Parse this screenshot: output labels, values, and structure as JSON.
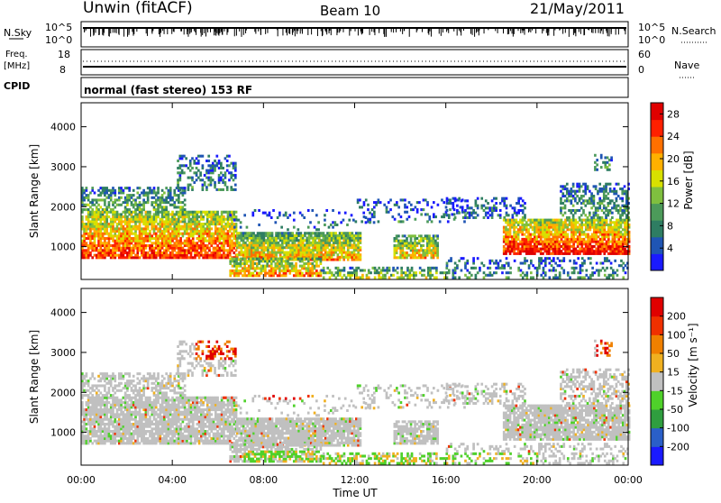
{
  "header": {
    "station": "Unwin (fitACF)",
    "beam": "Beam 10",
    "date": "21/May/2011"
  },
  "noise_panel": {
    "left_label": "N.Sky",
    "right_label": "N.Search",
    "ticks": [
      "10^5",
      "10^0"
    ],
    "right_ticks": [
      "10^5",
      "10^0"
    ]
  },
  "freq_panel": {
    "left_label_1": "Freq.",
    "left_label_2": "[MHz]",
    "left_ticks": [
      "18",
      "8"
    ],
    "right_label": "Nave",
    "right_ticks": [
      "60",
      "0"
    ]
  },
  "cpid_panel": {
    "label": "CPID",
    "text": "normal (fast stereo) 153 RF"
  },
  "chart_data": [
    {
      "type": "heatmap",
      "name": "power",
      "ylabel": "Slant Range [km]",
      "xlabel": "",
      "x_ticks": [
        "00:00",
        "04:00",
        "08:00",
        "12:00",
        "16:00",
        "20:00",
        "00:00"
      ],
      "y_ticks": [
        1000,
        2000,
        3000,
        4000
      ],
      "ylim": [
        180,
        4600
      ],
      "xlim_hours": [
        0,
        24
      ],
      "colorbar": {
        "label": "Power [dB]",
        "ticks": [
          4,
          8,
          12,
          16,
          20,
          24,
          28
        ],
        "range": [
          0,
          30
        ],
        "colors": [
          "#1a1aff",
          "#1f55b4",
          "#2e7d62",
          "#4c9a5a",
          "#7fbf3f",
          "#d8e000",
          "#ffb000",
          "#ff7000",
          "#ff2000",
          "#e00000"
        ]
      }
    },
    {
      "type": "heatmap",
      "name": "velocity",
      "ylabel": "Slant Range [km]",
      "xlabel": "Time UT",
      "x_ticks": [
        "00:00",
        "04:00",
        "08:00",
        "12:00",
        "16:00",
        "20:00",
        "00:00"
      ],
      "y_ticks": [
        1000,
        2000,
        3000,
        4000
      ],
      "ylim": [
        180,
        4600
      ],
      "xlim_hours": [
        0,
        24
      ],
      "colorbar": {
        "label": "Velocity [m s⁻¹]",
        "ticks": [
          200,
          100,
          50,
          15,
          -15,
          -50,
          -100,
          -200
        ],
        "range": [
          -250,
          250
        ],
        "colors": [
          "#1a1aff",
          "#2a5fc8",
          "#2f9e3f",
          "#4fd12a",
          "#c0c0c0",
          "#f0b020",
          "#f08000",
          "#f03000",
          "#e00000"
        ]
      }
    }
  ]
}
